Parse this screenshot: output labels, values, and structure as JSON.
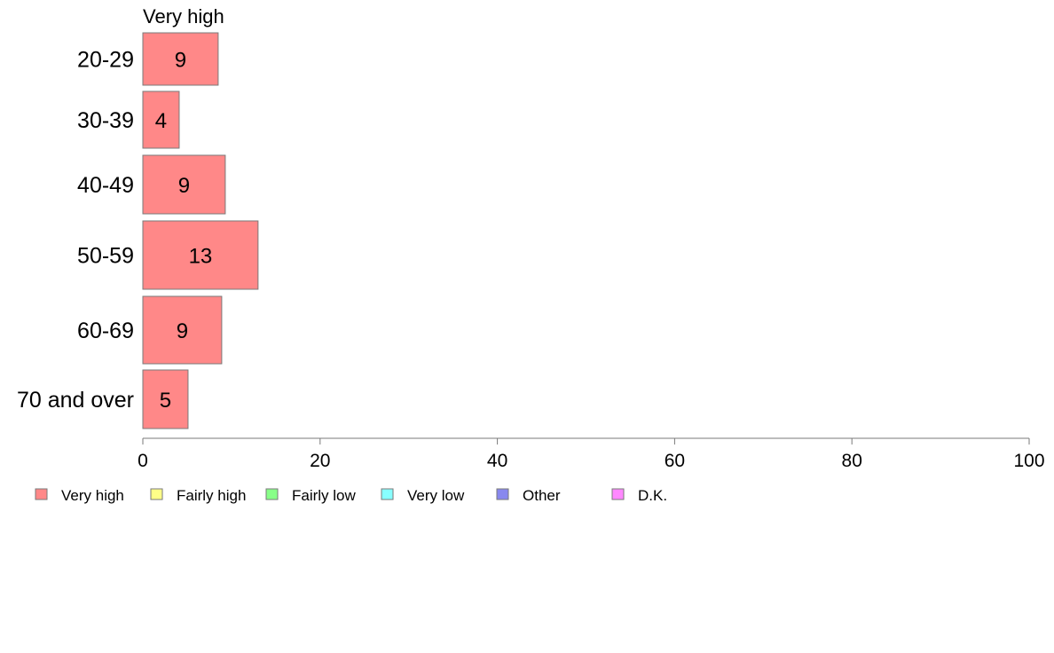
{
  "chart_data": {
    "type": "bar",
    "orientation": "horizontal",
    "series_title": "Very high",
    "categories": [
      "20-29",
      "30-39",
      "40-49",
      "50-59",
      "60-69",
      "70 and over"
    ],
    "series": [
      {
        "name": "Very high",
        "values": [
          9,
          4,
          9,
          13,
          9,
          5
        ],
        "color": "#ff8888"
      }
    ],
    "data_labels": [
      "9",
      "4",
      "9",
      "13",
      "9",
      "5"
    ],
    "bar_extent": [
      8.5,
      4.1,
      9.3,
      13.0,
      8.9,
      5.1
    ],
    "xlim": [
      0,
      100
    ],
    "xticks": [
      0,
      20,
      40,
      60,
      80,
      100
    ],
    "xlabel": "",
    "ylabel": "",
    "grid": false,
    "legend_position": "bottom",
    "legend": [
      {
        "label": "Very high",
        "color": "#ff8888"
      },
      {
        "label": "Fairly high",
        "color": "#ffff88"
      },
      {
        "label": "Fairly low",
        "color": "#88ff88"
      },
      {
        "label": "Very low",
        "color": "#88ffff"
      },
      {
        "label": "Other",
        "color": "#8888ee"
      },
      {
        "label": "D.K.",
        "color": "#ff88ff"
      }
    ]
  }
}
